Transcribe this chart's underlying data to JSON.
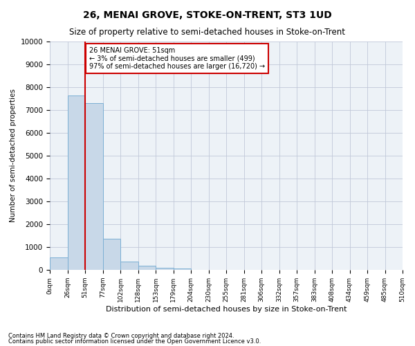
{
  "title": "26, MENAI GROVE, STOKE-ON-TRENT, ST3 1UD",
  "subtitle": "Size of property relative to semi-detached houses in Stoke-on-Trent",
  "xlabel": "Distribution of semi-detached houses by size in Stoke-on-Trent",
  "ylabel": "Number of semi-detached properties",
  "footnote1": "Contains HM Land Registry data © Crown copyright and database right 2024.",
  "footnote2": "Contains public sector information licensed under the Open Government Licence v3.0.",
  "annotation_title": "26 MENAI GROVE: 51sqm",
  "annotation_line2": "← 3% of semi-detached houses are smaller (499)",
  "annotation_line3": "97% of semi-detached houses are larger (16,720) →",
  "property_size_bin_edge": 51,
  "bin_edges": [
    0,
    25.5,
    51,
    76.5,
    102,
    127.5,
    153,
    178.5,
    204,
    229.5,
    255,
    280.5,
    306,
    331.5,
    357,
    382.5,
    408,
    433.5,
    459,
    484.5,
    510
  ],
  "bar_heights": [
    550,
    7650,
    7300,
    1350,
    350,
    175,
    100,
    55,
    0,
    0,
    0,
    0,
    0,
    0,
    0,
    0,
    0,
    0,
    0,
    0
  ],
  "tick_labels": [
    "0sqm",
    "26sqm",
    "51sqm",
    "77sqm",
    "102sqm",
    "128sqm",
    "153sqm",
    "179sqm",
    "204sqm",
    "230sqm",
    "255sqm",
    "281sqm",
    "306sqm",
    "332sqm",
    "357sqm",
    "383sqm",
    "408sqm",
    "434sqm",
    "459sqm",
    "485sqm",
    "510sqm"
  ],
  "bar_color": "#c8d8e8",
  "bar_edge_color": "#7bafd4",
  "marker_line_color": "#cc0000",
  "annotation_box_color": "#cc0000",
  "grid_color": "#c0c8d8",
  "background_color": "#edf2f7",
  "ylim": [
    0,
    10000
  ],
  "yticks": [
    0,
    1000,
    2000,
    3000,
    4000,
    5000,
    6000,
    7000,
    8000,
    9000,
    10000
  ]
}
